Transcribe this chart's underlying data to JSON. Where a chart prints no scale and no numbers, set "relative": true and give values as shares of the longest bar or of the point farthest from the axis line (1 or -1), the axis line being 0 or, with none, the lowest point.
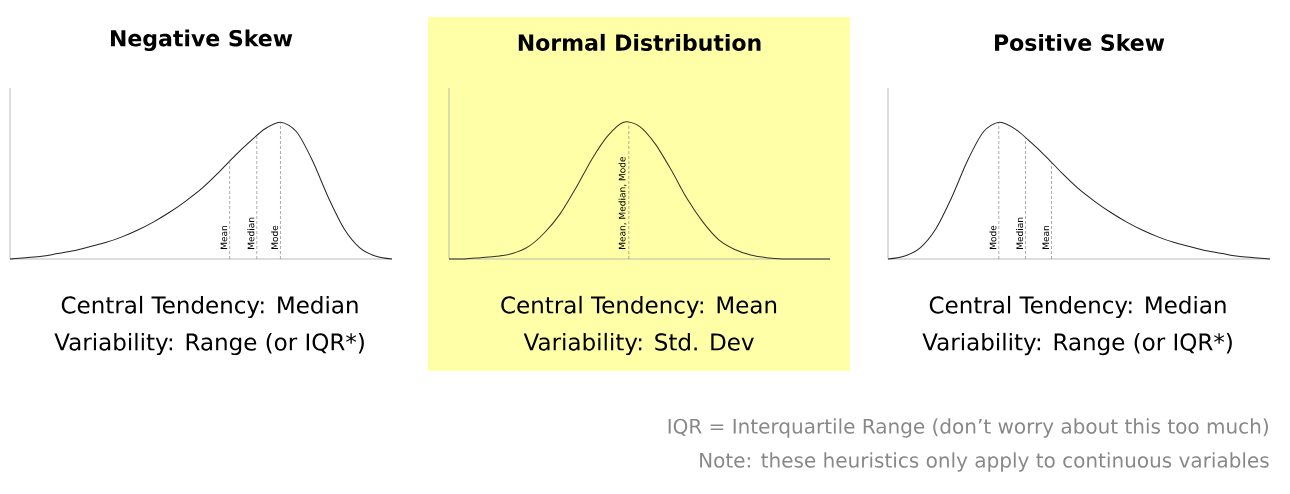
{
  "chart_data": [
    {
      "type": "line",
      "title": "Negative Skew",
      "relative": true,
      "color": "#222222",
      "categories": [
        null,
        null,
        null,
        null,
        null,
        null,
        null,
        null,
        null,
        null,
        null,
        null,
        null,
        null,
        null,
        null,
        null,
        null,
        null,
        null,
        null,
        null,
        null,
        null,
        null
      ],
      "values": [
        0.0,
        0.01,
        0.02,
        0.04,
        0.06,
        0.09,
        0.12,
        0.16,
        0.21,
        0.27,
        0.34,
        0.42,
        0.51,
        0.62,
        0.74,
        0.85,
        0.95,
        1.0,
        0.93,
        0.72,
        0.45,
        0.22,
        0.08,
        0.02,
        0.0
      ],
      "annotations": [
        "Mean",
        "Median",
        "Mode",
        "Central Tendency: Median",
        "Variability: Range (or IQR*)"
      ]
    },
    {
      "type": "line",
      "title": "Normal Distribution",
      "relative": true,
      "color": "#333322",
      "categories": [
        null,
        null,
        null,
        null,
        null,
        null,
        null,
        null,
        null,
        null,
        null,
        null,
        null,
        null,
        null,
        null,
        null,
        null,
        null,
        null,
        null,
        null,
        null,
        null,
        null
      ],
      "values": [
        0.0,
        0.0,
        0.01,
        0.02,
        0.04,
        0.09,
        0.19,
        0.33,
        0.52,
        0.73,
        0.9,
        1.0,
        0.97,
        0.84,
        0.65,
        0.44,
        0.27,
        0.14,
        0.07,
        0.03,
        0.01,
        0.0,
        0.0,
        0.0,
        0.0
      ],
      "annotations": [
        "Mean, Median, Mode",
        "Central Tendency: Mean",
        "Variability: Std. Dev"
      ]
    },
    {
      "type": "line",
      "title": "Positive Skew",
      "relative": true,
      "color": "#222222",
      "categories": [
        null,
        null,
        null,
        null,
        null,
        null,
        null,
        null,
        null,
        null,
        null,
        null,
        null,
        null,
        null,
        null,
        null,
        null,
        null,
        null,
        null,
        null,
        null,
        null,
        null
      ],
      "values": [
        0.0,
        0.02,
        0.08,
        0.22,
        0.45,
        0.72,
        0.93,
        1.0,
        0.95,
        0.85,
        0.74,
        0.62,
        0.51,
        0.42,
        0.34,
        0.27,
        0.21,
        0.16,
        0.12,
        0.09,
        0.06,
        0.04,
        0.02,
        0.01,
        0.0
      ],
      "annotations": [
        "Mode",
        "Median",
        "Mean",
        "Central Tendency: Median",
        "Variability: Range (or IQR*)",
        "IQR = Interquartile Range (don’t worry about this too much)",
        "Note: these heuristics only apply to continuous variables"
      ]
    }
  ]
}
